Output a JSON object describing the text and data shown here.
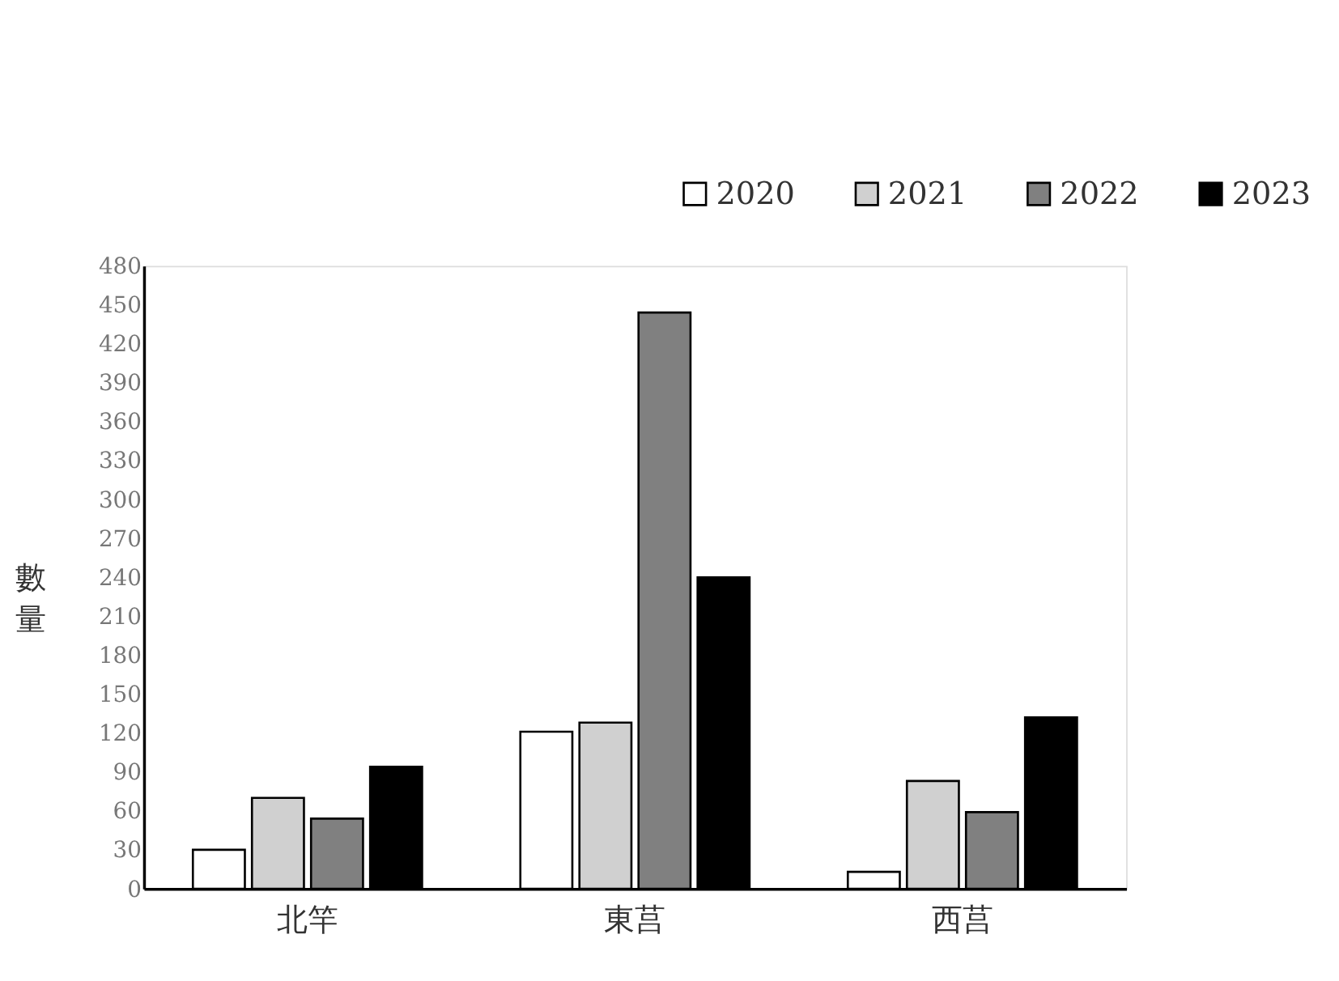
{
  "chart_data": {
    "type": "bar",
    "ylabel": "數量",
    "categories": [
      "北竿",
      "東莒",
      "西莒"
    ],
    "series": [
      {
        "name": "2020",
        "color": "#ffffff",
        "values": [
          30,
          121,
          13
        ]
      },
      {
        "name": "2021",
        "color": "#d0d0d0",
        "values": [
          70,
          128,
          83
        ]
      },
      {
        "name": "2022",
        "color": "#808080",
        "values": [
          54,
          444,
          59
        ]
      },
      {
        "name": "2023",
        "color": "#000000",
        "values": [
          94,
          240,
          132
        ]
      }
    ],
    "ylim": [
      0,
      480
    ],
    "yticks": [
      0,
      30,
      60,
      90,
      120,
      150,
      180,
      210,
      240,
      270,
      300,
      330,
      360,
      390,
      420,
      450,
      480
    ],
    "grid": false,
    "legend": "top right"
  }
}
